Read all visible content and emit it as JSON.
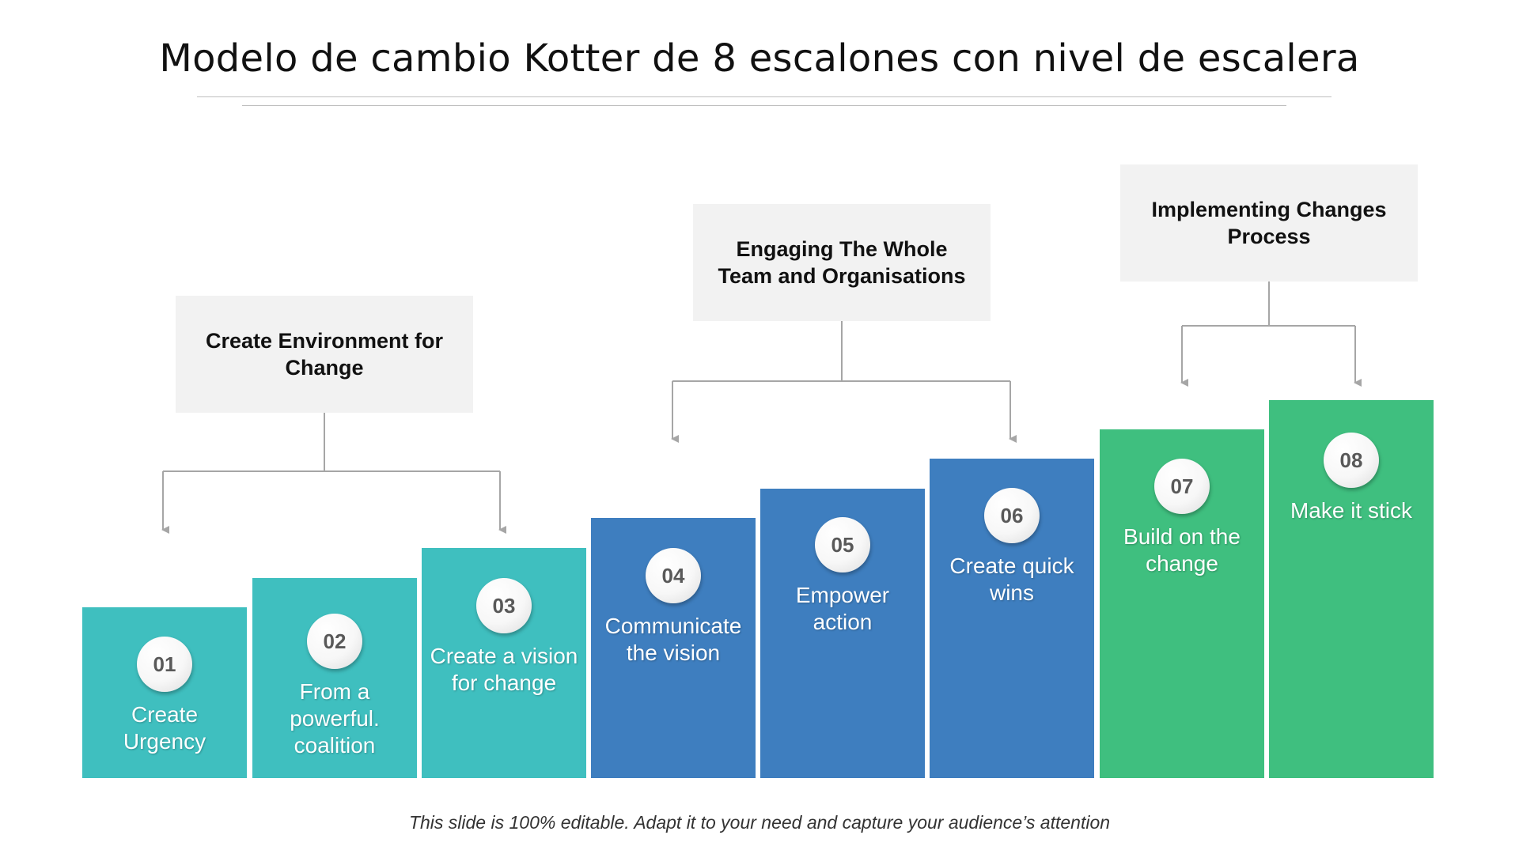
{
  "slide": {
    "title": "Modelo de cambio Kotter de 8 escalones con nivel de escalera",
    "footer": "This slide is 100% editable. Adapt it to your need and capture your audience’s attention"
  },
  "colors": {
    "teal": "#3fbfbf",
    "blue": "#3e7ebf",
    "green": "#3fbf7f",
    "group_box_bg": "#f2f2f2",
    "connector": "#a6a6a6"
  },
  "groups": [
    {
      "label": "Create Environment for Change",
      "steps": [
        "01",
        "02",
        "03"
      ]
    },
    {
      "label": "Engaging The Whole Team and Organisations",
      "steps": [
        "04",
        "05",
        "06"
      ]
    },
    {
      "label": "Implementing Changes Process",
      "steps": [
        "07",
        "08"
      ]
    }
  ],
  "steps": [
    {
      "number": "01",
      "label": "Create Urgency",
      "color": "#3fbfbf"
    },
    {
      "number": "02",
      "label": "From a powerful. coalition",
      "color": "#3fbfbf"
    },
    {
      "number": "03",
      "label": "Create a vision for change",
      "color": "#3fbfbf"
    },
    {
      "number": "04",
      "label": "Communicate the vision",
      "color": "#3e7ebf"
    },
    {
      "number": "05",
      "label": "Empower action",
      "color": "#3e7ebf"
    },
    {
      "number": "06",
      "label": "Create quick wins",
      "color": "#3e7ebf"
    },
    {
      "number": "07",
      "label": "Build on the change",
      "color": "#3fbf7f"
    },
    {
      "number": "08",
      "label": "Make it stick",
      "color": "#3fbf7f"
    }
  ]
}
